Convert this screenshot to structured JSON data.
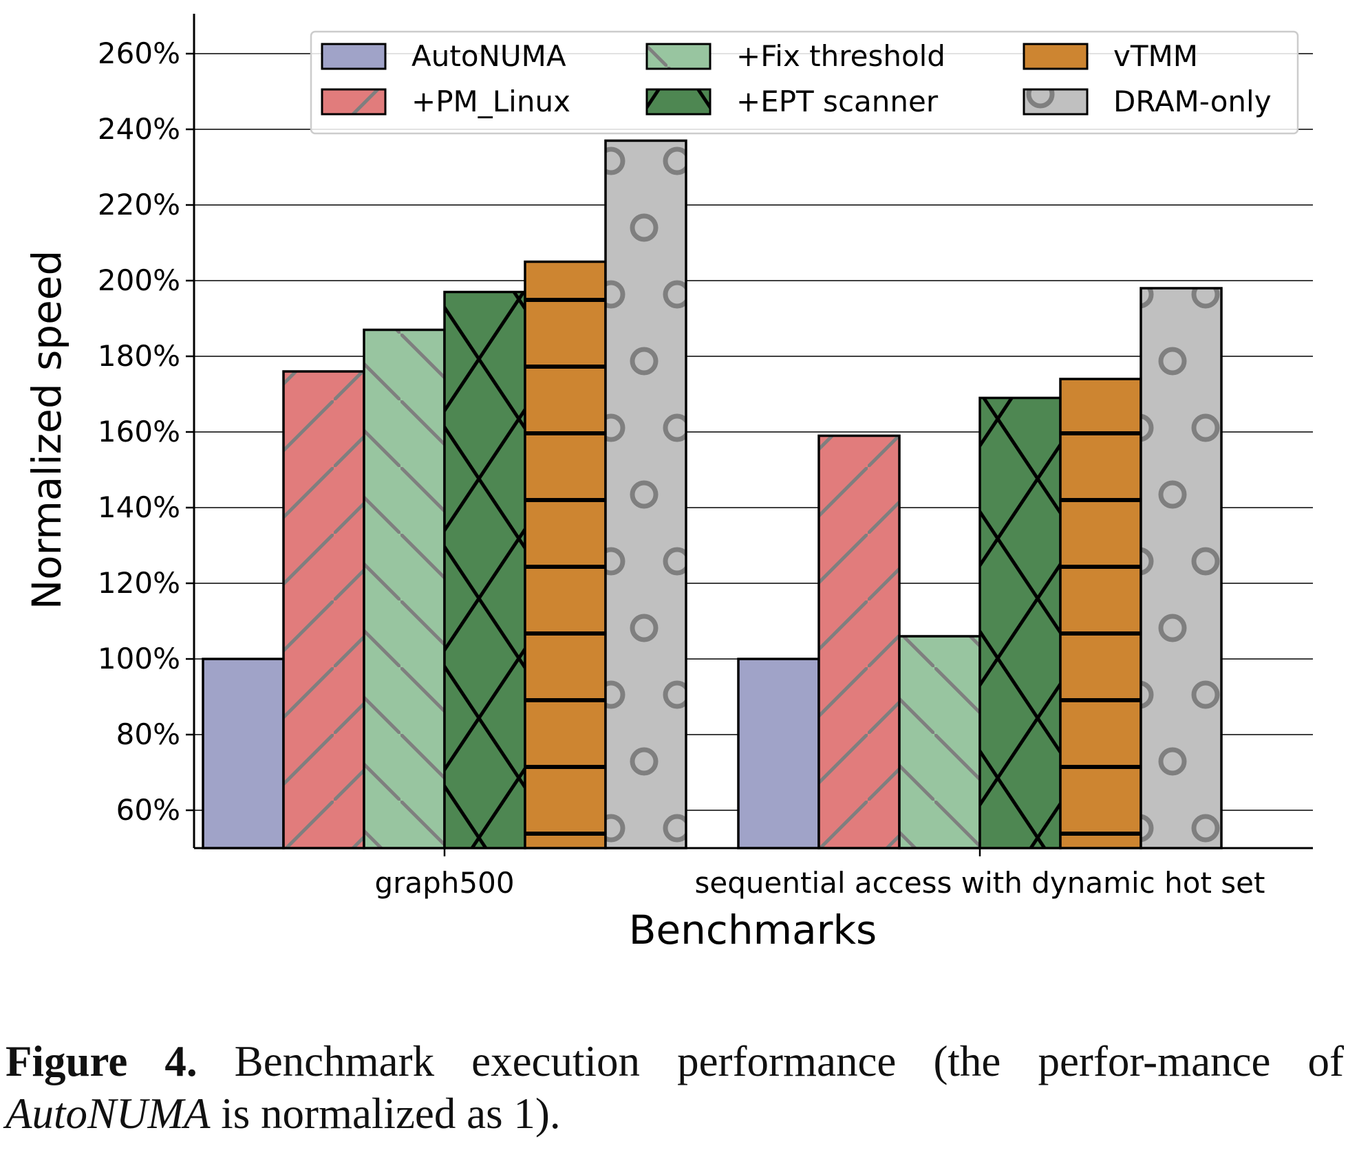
{
  "chart_data": {
    "type": "bar",
    "xlabel": "Benchmarks",
    "ylabel": "Normalized speed",
    "ylim": [
      50,
      270
    ],
    "yticks": [
      60,
      80,
      100,
      120,
      140,
      160,
      180,
      200,
      220,
      240,
      260
    ],
    "ytick_suffix": "%",
    "grid": "horizontal",
    "legend_position": "top-right",
    "categories": [
      "graph500",
      "sequential access with dynamic hot set"
    ],
    "series": [
      {
        "name": "AutoNUMA",
        "values": [
          100,
          100
        ],
        "color": "#a0a3c8",
        "hatch": "none",
        "hatch_color": "#7f7f7f"
      },
      {
        "name": "+PM_Linux",
        "values": [
          176,
          159
        ],
        "color": "#e17c7c",
        "hatch": "diagonal-up",
        "hatch_color": "#7f7f7f"
      },
      {
        "name": "+Fix threshold",
        "values": [
          187,
          106
        ],
        "color": "#98c5a0",
        "hatch": "diagonal-down",
        "hatch_color": "#7f7f7f"
      },
      {
        "name": "+EPT scanner",
        "values": [
          197,
          169
        ],
        "color": "#4e8752",
        "hatch": "cross",
        "hatch_color": "#000000"
      },
      {
        "name": "vTMM",
        "values": [
          205,
          174
        ],
        "color": "#cd8531",
        "hatch": "horizontal",
        "hatch_color": "#000000"
      },
      {
        "name": "DRAM-only",
        "values": [
          237,
          198
        ],
        "color": "#c0c0c0",
        "hatch": "circles",
        "hatch_color": "#7f7f7f"
      }
    ]
  },
  "caption": {
    "label": "Figure 4.",
    "text_before": " Benchmark execution performance (the perfor-mance of ",
    "italic": "AutoNUMA",
    "text_after": " is normalized as 1)."
  }
}
